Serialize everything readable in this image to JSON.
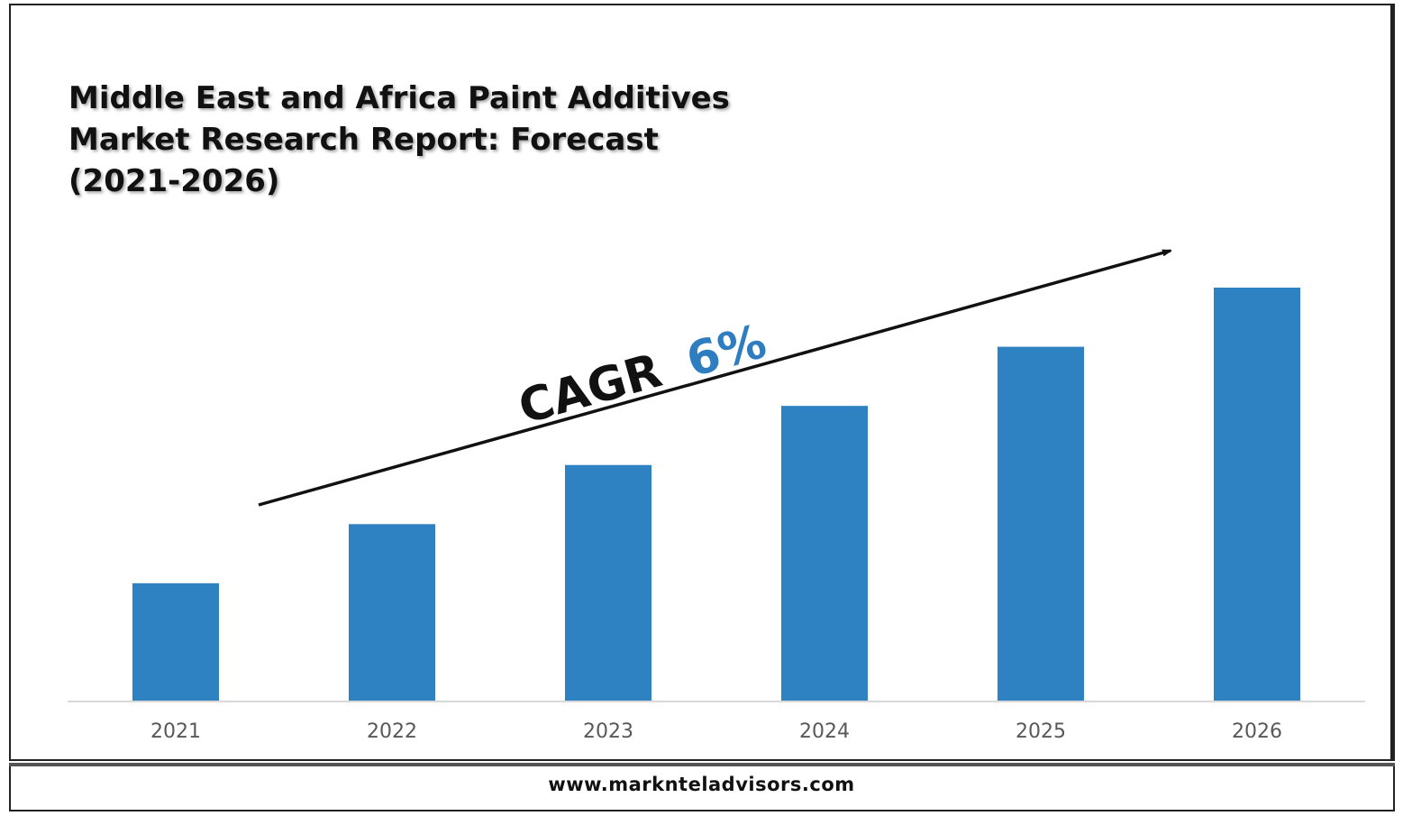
{
  "title_lines": [
    "Middle East and Africa Paint Additives",
    "Market Research Report: Forecast",
    "(2021-2026)"
  ],
  "annotation": {
    "label": "CAGR",
    "value": "6%",
    "value_color": "#2E7DC1"
  },
  "footer": {
    "url": "www.marknteladvisors.com"
  },
  "colors": {
    "bar": "#2E82C2",
    "axis": "#D9D9D9",
    "tick_text": "#595959"
  },
  "chart_data": {
    "type": "bar",
    "title": "Middle East and Africa Paint Additives Market Research Report: Forecast (2021-2026)",
    "categories": [
      "2021",
      "2022",
      "2023",
      "2024",
      "2025",
      "2026"
    ],
    "values": [
      1,
      1.5,
      2,
      2.5,
      3,
      3.5
    ],
    "ylim": [
      0,
      3.5
    ],
    "value_axis_shown": false,
    "grid": false,
    "xlabel": "",
    "ylabel": ""
  }
}
